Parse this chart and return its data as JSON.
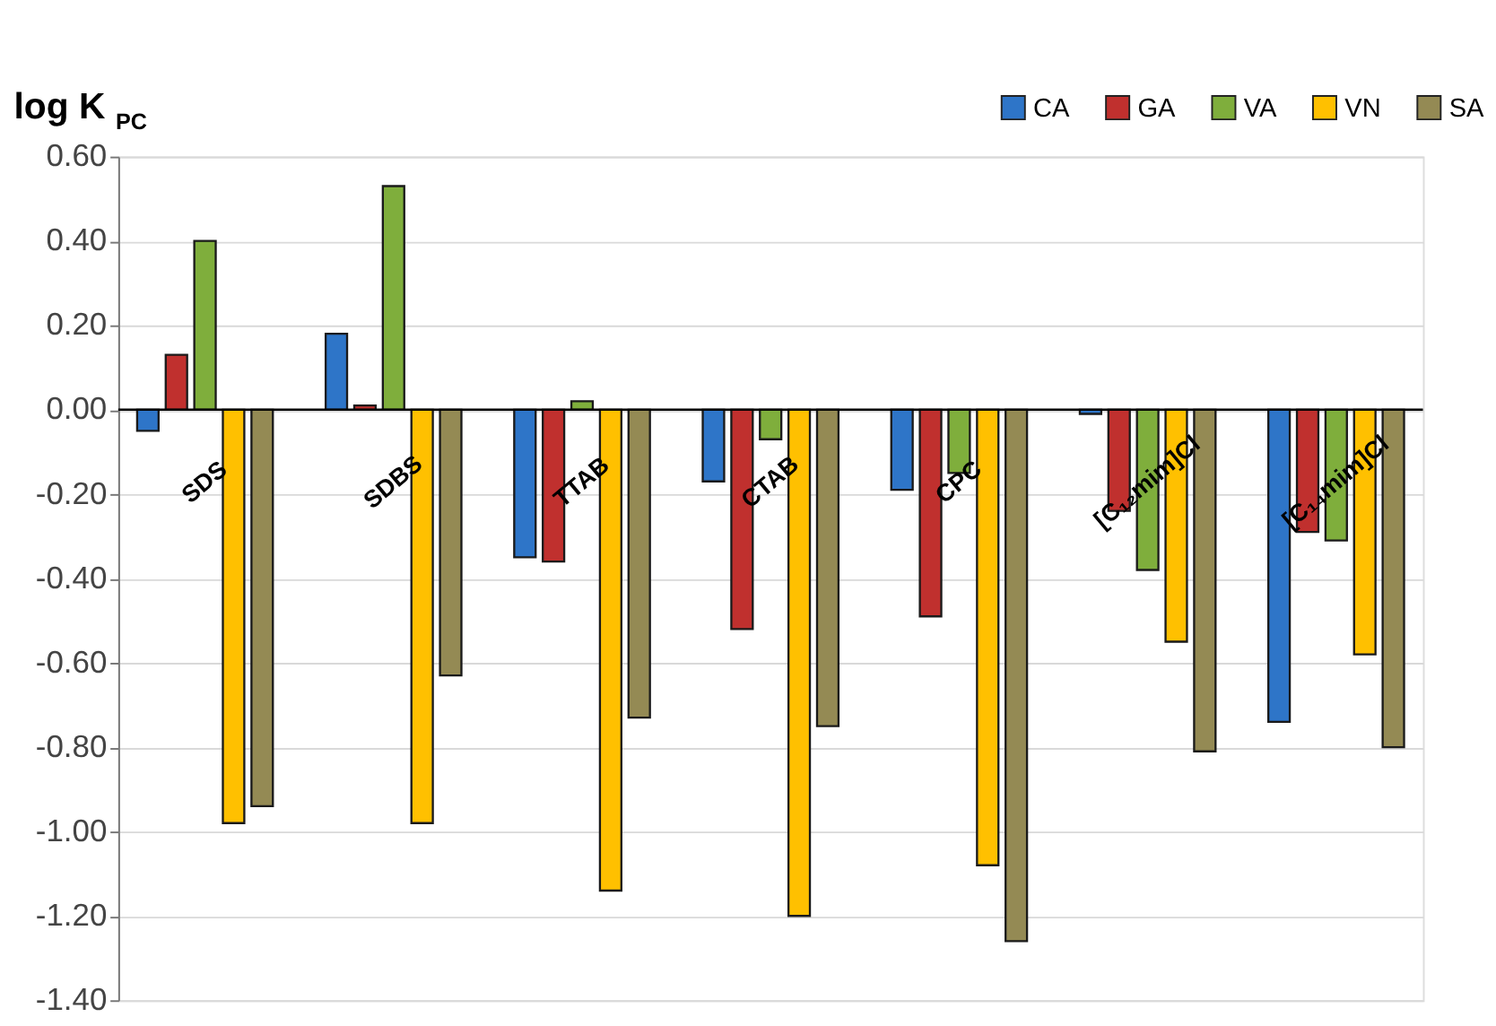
{
  "chart_data": {
    "type": "bar",
    "ylabel": "log K$_{PC}$",
    "categories": [
      "SDS",
      "SDBS",
      "TTAB",
      "CTAB",
      "CPC",
      "[C₁₂mim]Cl",
      "[C₁₄mim]Cl"
    ],
    "series": [
      {
        "name": "CA",
        "color": "#2e75c8",
        "values": [
          -0.05,
          0.18,
          -0.35,
          -0.17,
          -0.19,
          -0.01,
          -0.74
        ]
      },
      {
        "name": "GA",
        "color": "#c0302e",
        "values": [
          0.13,
          0.01,
          -0.36,
          -0.52,
          -0.49,
          -0.24,
          -0.29
        ]
      },
      {
        "name": "VA",
        "color": "#7fae3c",
        "values": [
          0.4,
          0.53,
          0.02,
          -0.07,
          -0.15,
          -0.38,
          -0.31
        ]
      },
      {
        "name": "VN",
        "color": "#ffc000",
        "values": [
          -0.98,
          -0.98,
          -1.14,
          -1.2,
          -1.08,
          -0.55,
          -0.58
        ]
      },
      {
        "name": "SA",
        "color": "#948a54",
        "values": [
          -0.94,
          -0.63,
          -0.73,
          -0.75,
          -1.26,
          -0.81,
          -0.8
        ]
      }
    ],
    "ylim": [
      -1.4,
      0.6
    ],
    "yticks": [
      {
        "value": -1.4,
        "label": "-1.40"
      },
      {
        "value": -1.2,
        "label": "-1.20"
      },
      {
        "value": -1.0,
        "label": "-1.00"
      },
      {
        "value": -0.8,
        "label": "-0.80"
      },
      {
        "value": -0.6,
        "label": "-0.60"
      },
      {
        "value": -0.4,
        "label": "-0.40"
      },
      {
        "value": -0.2,
        "label": "-0.20"
      },
      {
        "value": 0.0,
        "label": "0.00"
      },
      {
        "value": 0.2,
        "label": "0.20"
      },
      {
        "value": 0.4,
        "label": "0.40"
      },
      {
        "value": 0.6,
        "label": "0.60"
      }
    ],
    "grid": "y",
    "legend": "top right"
  }
}
